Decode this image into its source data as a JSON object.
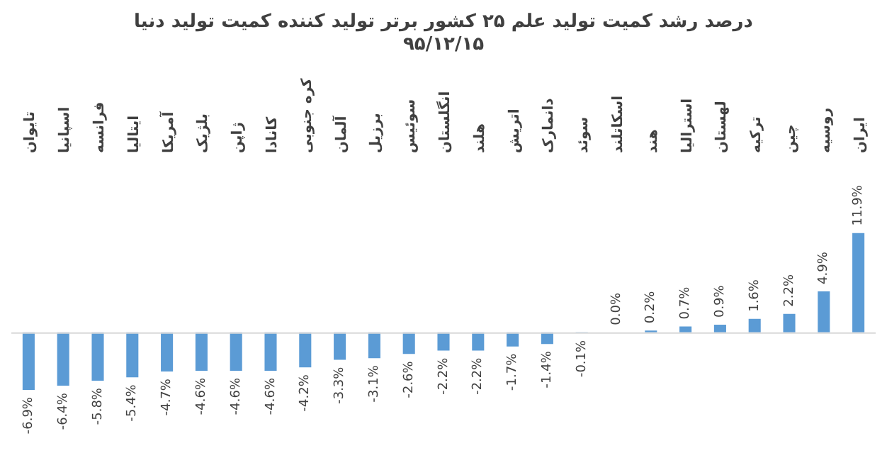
{
  "chart_data": {
    "type": "bar",
    "title": "درصد رشد کمیت تولید علم ۲۵ کشور برتر تولید کننده کمیت تولید دنیا",
    "subtitle": "۹۵/۱۲/۱۵",
    "categories": [
      "تایوان",
      "اسپانیا",
      "فرانسه",
      "ایتالیا",
      "آمریکا",
      "بلژیک",
      "ژاپن",
      "کانادا",
      "کره جنوبی",
      "آلمان",
      "برزیل",
      "سوئیس",
      "انگلستان",
      "هلند",
      "اتریش",
      "دانمارک",
      "سوئد",
      "اسکاتلند",
      "هند",
      "استرالیا",
      "لهستان",
      "ترکیه",
      "چین",
      "روسیه",
      "ایران"
    ],
    "values": [
      -6.9,
      -6.4,
      -5.8,
      -5.4,
      -4.7,
      -4.6,
      -4.6,
      -4.6,
      -4.2,
      -3.3,
      -3.1,
      -2.6,
      -2.2,
      -2.2,
      -1.7,
      -1.4,
      -0.1,
      0.0,
      0.2,
      0.7,
      0.9,
      1.6,
      2.2,
      4.9,
      11.9
    ],
    "value_labels": [
      "-6.9%",
      "-6.4%",
      "-5.8%",
      "-5.4%",
      "-4.7%",
      "-4.6%",
      "-4.6%",
      "-4.6%",
      "-4.2%",
      "-3.3%",
      "-3.1%",
      "-2.6%",
      "-2.2%",
      "-2.2%",
      "-1.7%",
      "-1.4%",
      "-0.1%",
      "0.0%",
      "0.2%",
      "0.7%",
      "0.9%",
      "1.6%",
      "2.2%",
      "4.9%",
      "11.9%"
    ],
    "color": "#5b9bd5",
    "grid": false,
    "legend": false
  }
}
